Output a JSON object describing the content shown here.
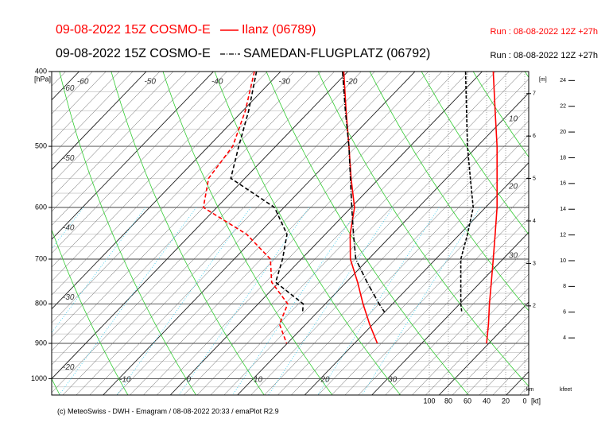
{
  "chart_data": {
    "type": "emagram",
    "ylabel": "[hPa]",
    "ylim": [
      400,
      1050
    ],
    "log_y": true,
    "yticks": [
      400,
      500,
      600,
      700,
      800,
      900,
      1000
    ],
    "xlim": [
      -20,
      51
    ],
    "xticks": [
      -10,
      0,
      10,
      20,
      30
    ],
    "xticks_top": [
      -60,
      -50,
      -40,
      -30,
      -20
    ],
    "left_labels": [
      -60,
      -50,
      -40,
      -30,
      -20
    ],
    "right_labels": [
      10,
      20,
      30
    ],
    "wind_xlim": [
      0,
      100
    ],
    "wind_xticks": [
      100,
      80,
      60,
      40,
      20,
      0
    ],
    "wind_unit": "[kt]",
    "height_unit": "[m]",
    "km_label": "km",
    "km_lim": [
      -0.1,
      7.52
    ],
    "km_ticks": [
      2,
      3,
      4,
      5,
      6,
      7
    ],
    "kfeet_label": "kfeet",
    "kfeet_lim": [
      -0.44,
      24.7
    ],
    "kfeet_ticks": [
      4,
      6,
      8,
      10,
      12,
      14,
      16,
      18,
      20,
      22,
      24
    ],
    "footer": "(c) MeteoSwiss - DWH - Emagram / 08-08-2022 20:33 / emaPlot R2.9",
    "series": [
      {
        "name": "Ilanz (06789)",
        "forecast": "09-08-2022 15Z COSMO-E",
        "run": "Run : 08-08-2022 12Z +27h",
        "color": "#ff0000",
        "style": "solid",
        "pressure": [
          400,
          450,
          500,
          550,
          600,
          650,
          700,
          750,
          800,
          850,
          900
        ],
        "temperature": [
          -20.6,
          -14.6,
          -9.1,
          -4.2,
          0.5,
          3.7,
          7.3,
          11.7,
          15.6,
          19.5,
          23.4
        ],
        "dewpoint": [
          -33.9,
          -29.6,
          -26.4,
          -25.4,
          -22.0,
          -11.7,
          -4.6,
          -1.1,
          4.4,
          6.1,
          9.9
        ],
        "wind_speed": [
          33,
          31,
          29,
          29,
          29,
          31,
          33,
          35,
          37,
          38,
          40
        ]
      },
      {
        "name": "SAMEDAN-FLUGPLATZ (06792)",
        "forecast": "09-08-2022 15Z COSMO-E",
        "run": "Run : 08-08-2022 12Z +27h",
        "color": "#000000",
        "style": "dashdot",
        "pressure": [
          400,
          450,
          500,
          550,
          600,
          650,
          700,
          750,
          800,
          820
        ],
        "temperature": [
          -20.8,
          -14.7,
          -9.1,
          -4.3,
          0.1,
          4.2,
          8.1,
          13.1,
          18.0,
          20.0
        ],
        "dewpoint": [
          -33.6,
          -29.1,
          -25.5,
          -22.1,
          -11.4,
          -5.7,
          -2.8,
          -0.5,
          6.7,
          7.8
        ],
        "wind_speed": [
          62,
          61,
          60,
          57,
          54,
          60,
          67,
          67,
          67,
          66
        ]
      }
    ]
  }
}
